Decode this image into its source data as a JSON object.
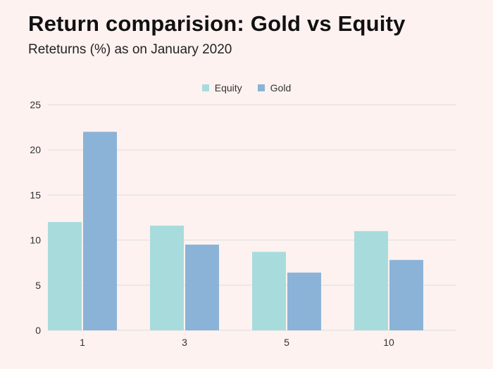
{
  "title": "Return comparision: Gold vs Equity",
  "subtitle": "Reteturns (%) as on January 2020",
  "colors": {
    "background": "#fdf2f0",
    "equity": "#a8dcdc",
    "gold": "#8bb3d7",
    "grid": "#dddddd"
  },
  "chart_data": {
    "type": "bar",
    "title": "Return comparision: Gold vs Equity",
    "subtitle": "Reteturns (%) as on January 2020",
    "categories": [
      "1",
      "3",
      "5",
      "10"
    ],
    "series": [
      {
        "name": "Equity",
        "values": [
          12.0,
          11.6,
          8.7,
          11.0
        ]
      },
      {
        "name": "Gold",
        "values": [
          22.0,
          9.5,
          6.4,
          7.8
        ]
      }
    ],
    "ylim": [
      0,
      25
    ],
    "yticks": [
      "0",
      "5",
      "10",
      "15",
      "20",
      "25"
    ],
    "grid": true,
    "legend_position": "top-center"
  }
}
